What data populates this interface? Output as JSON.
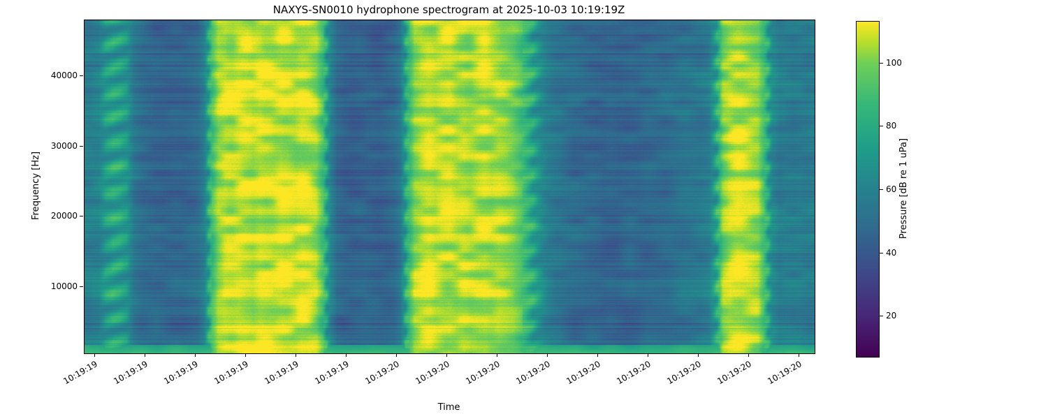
{
  "chart_data": {
    "type": "heatmap",
    "subtype": "spectrogram",
    "title": "NAXYS-SN0010 hydrophone spectrogram at 2025-10-03 10:19:19Z",
    "xlabel": "Time",
    "ylabel": "Frequency [Hz]",
    "colorbar_label": "Pressure [dB re 1 uPa]",
    "x_tick_labels": [
      "10:19:19",
      "10:19:19",
      "10:19:19",
      "10:19:19",
      "10:19:19",
      "10:19:19",
      "10:19:20",
      "10:19:20",
      "10:19:20",
      "10:19:20",
      "10:19:20",
      "10:19:20",
      "10:19:20",
      "10:19:20",
      "10:19:20"
    ],
    "y_ticks_hz": [
      10000,
      20000,
      30000,
      40000
    ],
    "freq_range_hz": [
      500,
      48000
    ],
    "colorbar_ticks_db": [
      20,
      40,
      60,
      80,
      100
    ],
    "clim_db": [
      7,
      113
    ],
    "colormap": "viridis",
    "viridis_stops": [
      {
        "pos": 0.0,
        "color": "#440154"
      },
      {
        "pos": 0.125,
        "color": "#482878"
      },
      {
        "pos": 0.25,
        "color": "#3e4989"
      },
      {
        "pos": 0.375,
        "color": "#31688e"
      },
      {
        "pos": 0.5,
        "color": "#26828e"
      },
      {
        "pos": 0.625,
        "color": "#1f9e89"
      },
      {
        "pos": 0.75,
        "color": "#35b779"
      },
      {
        "pos": 0.875,
        "color": "#6ece58"
      },
      {
        "pos": 0.9375,
        "color": "#b5de2b"
      },
      {
        "pos": 1.0,
        "color": "#fde725"
      }
    ],
    "background_db": 55,
    "low_freq_band_db": 85,
    "time_profile_db": [
      58,
      59,
      61,
      72,
      76,
      75,
      70,
      55,
      50,
      48,
      47,
      46,
      46,
      47,
      46,
      47,
      49,
      58,
      88,
      104,
      108,
      107,
      109,
      108,
      106,
      109,
      108,
      107,
      109,
      108,
      106,
      108,
      107,
      104,
      90,
      62,
      48,
      45,
      44,
      45,
      46,
      45,
      44,
      45,
      47,
      55,
      85,
      103,
      106,
      107,
      105,
      107,
      108,
      106,
      107,
      105,
      106,
      107,
      105,
      106,
      104,
      100,
      93,
      85,
      76,
      66,
      58,
      54,
      52,
      50,
      49,
      48,
      47,
      46,
      45,
      46,
      45,
      46,
      47,
      46,
      47,
      48,
      49,
      50,
      51,
      52,
      53,
      54,
      55,
      58,
      75,
      100,
      106,
      108,
      107,
      106,
      104,
      88,
      64,
      57,
      58,
      57,
      58,
      57,
      58
    ],
    "events": [
      {
        "label": "periodic pulse blobs",
        "x_frac_start": 0.027,
        "x_frac_end": 0.067,
        "peak_db": 76
      },
      {
        "label": "broadband burst 1",
        "x_frac_start": 0.167,
        "x_frac_end": 0.33,
        "peak_db": 109
      },
      {
        "label": "broadband burst 2",
        "x_frac_start": 0.44,
        "x_frac_end": 0.62,
        "peak_db": 108
      },
      {
        "label": "broadband burst 3",
        "x_frac_start": 0.861,
        "x_frac_end": 0.93,
        "peak_db": 108
      }
    ]
  }
}
